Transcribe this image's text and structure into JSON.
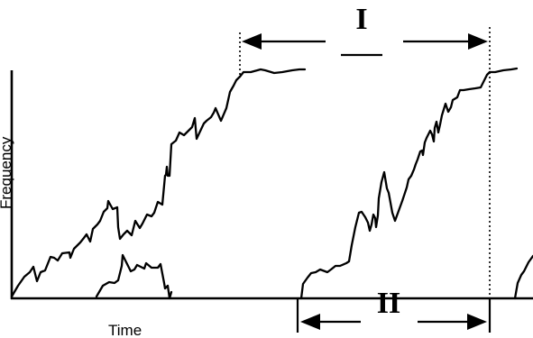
{
  "diagram": {
    "x_axis_label": "Time",
    "y_axis_label": "Frequency",
    "interval_top_label": "I",
    "interval_bottom_label": "II"
  }
}
